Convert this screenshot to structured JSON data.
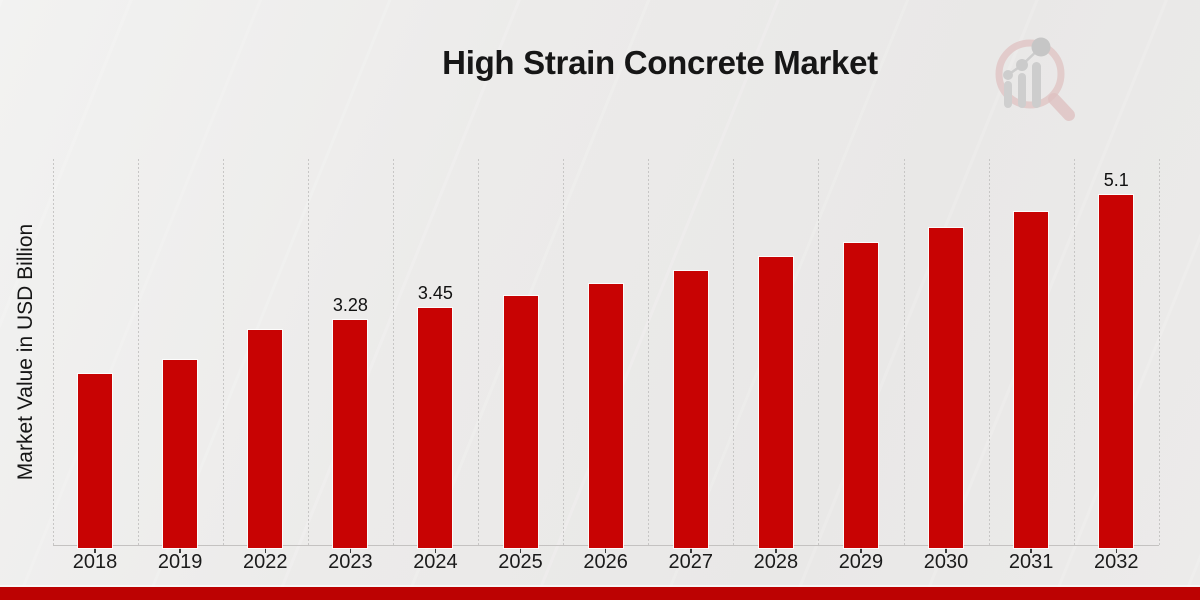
{
  "header": {
    "title": "High Strain Concrete Market",
    "logo_icon": "magnifier-bar-chart-watermark"
  },
  "chart_data": {
    "type": "bar",
    "title": "High Strain Concrete Market",
    "xlabel": "",
    "ylabel": "Market Value in USD Billion",
    "categories": [
      "2018",
      "2019",
      "2022",
      "2023",
      "2024",
      "2025",
      "2026",
      "2027",
      "2028",
      "2029",
      "2030",
      "2031",
      "2032"
    ],
    "values": [
      2.5,
      2.7,
      3.13,
      3.28,
      3.45,
      3.63,
      3.8,
      4.0,
      4.2,
      4.41,
      4.62,
      4.85,
      5.1
    ],
    "point_labels": [
      "",
      "",
      "",
      "3.28",
      "3.45",
      "",
      "",
      "",
      "",
      "",
      "",
      "",
      "5.1"
    ],
    "ylim": [
      0,
      5.63
    ],
    "grid": "vertical-dotted-group-separators",
    "legend": "none",
    "bar_color": "#c80303",
    "footer_band_color": "#bc0202",
    "label_color": "#111111",
    "axis_text_color": "#1b1b1b"
  }
}
